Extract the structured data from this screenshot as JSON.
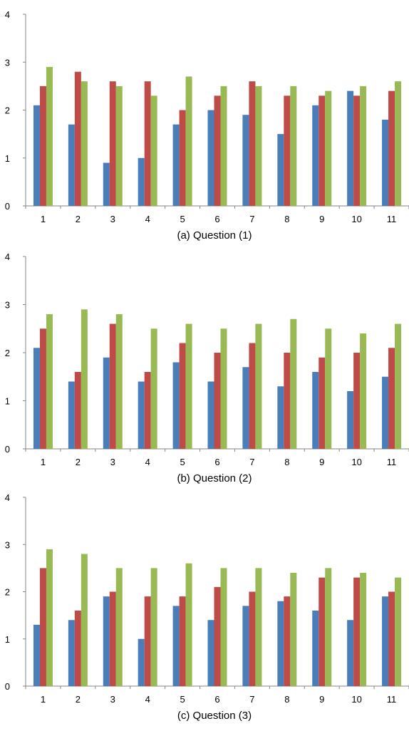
{
  "colors": {
    "series": [
      "#4a7ebb",
      "#be4b48",
      "#98b954"
    ],
    "axis": "#868686",
    "text": "#000000"
  },
  "chart_data": [
    {
      "type": "bar",
      "caption": "(a) Question (1)",
      "categories": [
        "1",
        "2",
        "3",
        "4",
        "5",
        "6",
        "7",
        "8",
        "9",
        "10",
        "11"
      ],
      "series": [
        {
          "values": [
            2.1,
            1.7,
            0.9,
            1.0,
            1.7,
            2.0,
            1.9,
            1.5,
            2.1,
            2.4,
            1.8
          ]
        },
        {
          "values": [
            2.5,
            2.8,
            2.6,
            2.6,
            2.0,
            2.3,
            2.6,
            2.3,
            2.3,
            2.3,
            2.4
          ]
        },
        {
          "values": [
            2.9,
            2.6,
            2.5,
            2.3,
            2.7,
            2.5,
            2.5,
            2.5,
            2.4,
            2.5,
            2.6
          ]
        }
      ],
      "ylim": [
        0,
        4
      ],
      "yticks": [
        "0",
        "1",
        "2",
        "3",
        "4"
      ],
      "grid": false,
      "legend": "none"
    },
    {
      "type": "bar",
      "caption": "(b) Question (2)",
      "categories": [
        "1",
        "2",
        "3",
        "4",
        "5",
        "6",
        "7",
        "8",
        "9",
        "10",
        "11"
      ],
      "series": [
        {
          "values": [
            2.1,
            1.4,
            1.9,
            1.4,
            1.8,
            1.4,
            1.7,
            1.3,
            1.6,
            1.2,
            1.5
          ]
        },
        {
          "values": [
            2.5,
            1.6,
            2.6,
            1.6,
            2.2,
            2.0,
            2.2,
            2.0,
            1.9,
            2.0,
            2.1
          ]
        },
        {
          "values": [
            2.8,
            2.9,
            2.8,
            2.5,
            2.6,
            2.5,
            2.6,
            2.7,
            2.5,
            2.4,
            2.6
          ]
        }
      ],
      "ylim": [
        0,
        4
      ],
      "yticks": [
        "0",
        "1",
        "2",
        "3",
        "4"
      ],
      "grid": false,
      "legend": "none"
    },
    {
      "type": "bar",
      "caption": "(c) Question (3)",
      "categories": [
        "1",
        "2",
        "3",
        "4",
        "5",
        "6",
        "7",
        "8",
        "9",
        "10",
        "11"
      ],
      "series": [
        {
          "values": [
            1.3,
            1.4,
            1.9,
            1.0,
            1.7,
            1.4,
            1.7,
            1.8,
            1.6,
            1.4,
            1.9
          ]
        },
        {
          "values": [
            2.5,
            1.6,
            2.0,
            1.9,
            1.9,
            2.1,
            2.0,
            1.9,
            2.3,
            2.3,
            2.0
          ]
        },
        {
          "values": [
            2.9,
            2.8,
            2.5,
            2.5,
            2.6,
            2.5,
            2.5,
            2.4,
            2.5,
            2.4,
            2.3
          ]
        }
      ],
      "ylim": [
        0,
        4
      ],
      "yticks": [
        "0",
        "1",
        "2",
        "3",
        "4"
      ],
      "grid": false,
      "legend": "none"
    }
  ]
}
